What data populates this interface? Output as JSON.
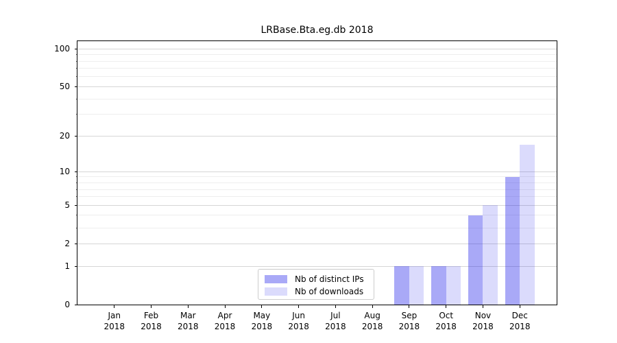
{
  "chart_data": {
    "type": "bar",
    "title": "LRBase.Bta.eg.db 2018",
    "categories": [
      "Jan",
      "Feb",
      "Mar",
      "Apr",
      "May",
      "Jun",
      "Jul",
      "Aug",
      "Sep",
      "Oct",
      "Nov",
      "Dec"
    ],
    "year": "2018",
    "series": [
      {
        "name": "Nb of distinct IPs",
        "color": "rgba(30,30,235,0.38)",
        "values": [
          0,
          0,
          0,
          0,
          0,
          0,
          0,
          0,
          1,
          1,
          4,
          9
        ]
      },
      {
        "name": "Nb of downloads",
        "color": "rgba(30,30,235,0.16)",
        "values": [
          0,
          0,
          0,
          0,
          0,
          0,
          0,
          0,
          1,
          1,
          5,
          17
        ]
      }
    ],
    "yscale": "log1p",
    "ylim": [
      0,
      115
    ],
    "yticks_major": [
      0,
      1,
      2,
      5,
      10,
      20,
      50,
      100
    ],
    "yticks_minor": [
      3,
      4,
      6,
      7,
      8,
      9,
      30,
      40,
      60,
      70,
      80,
      90
    ],
    "grid": true,
    "legend_position": "lower center",
    "colors": {
      "bar_ips_on_white": "#acacf8",
      "bar_downloads_on_white": "#dcdcfa",
      "grid_major": "#d6d6d6",
      "grid_minor": "#eeeeee",
      "text": "#000000"
    }
  }
}
